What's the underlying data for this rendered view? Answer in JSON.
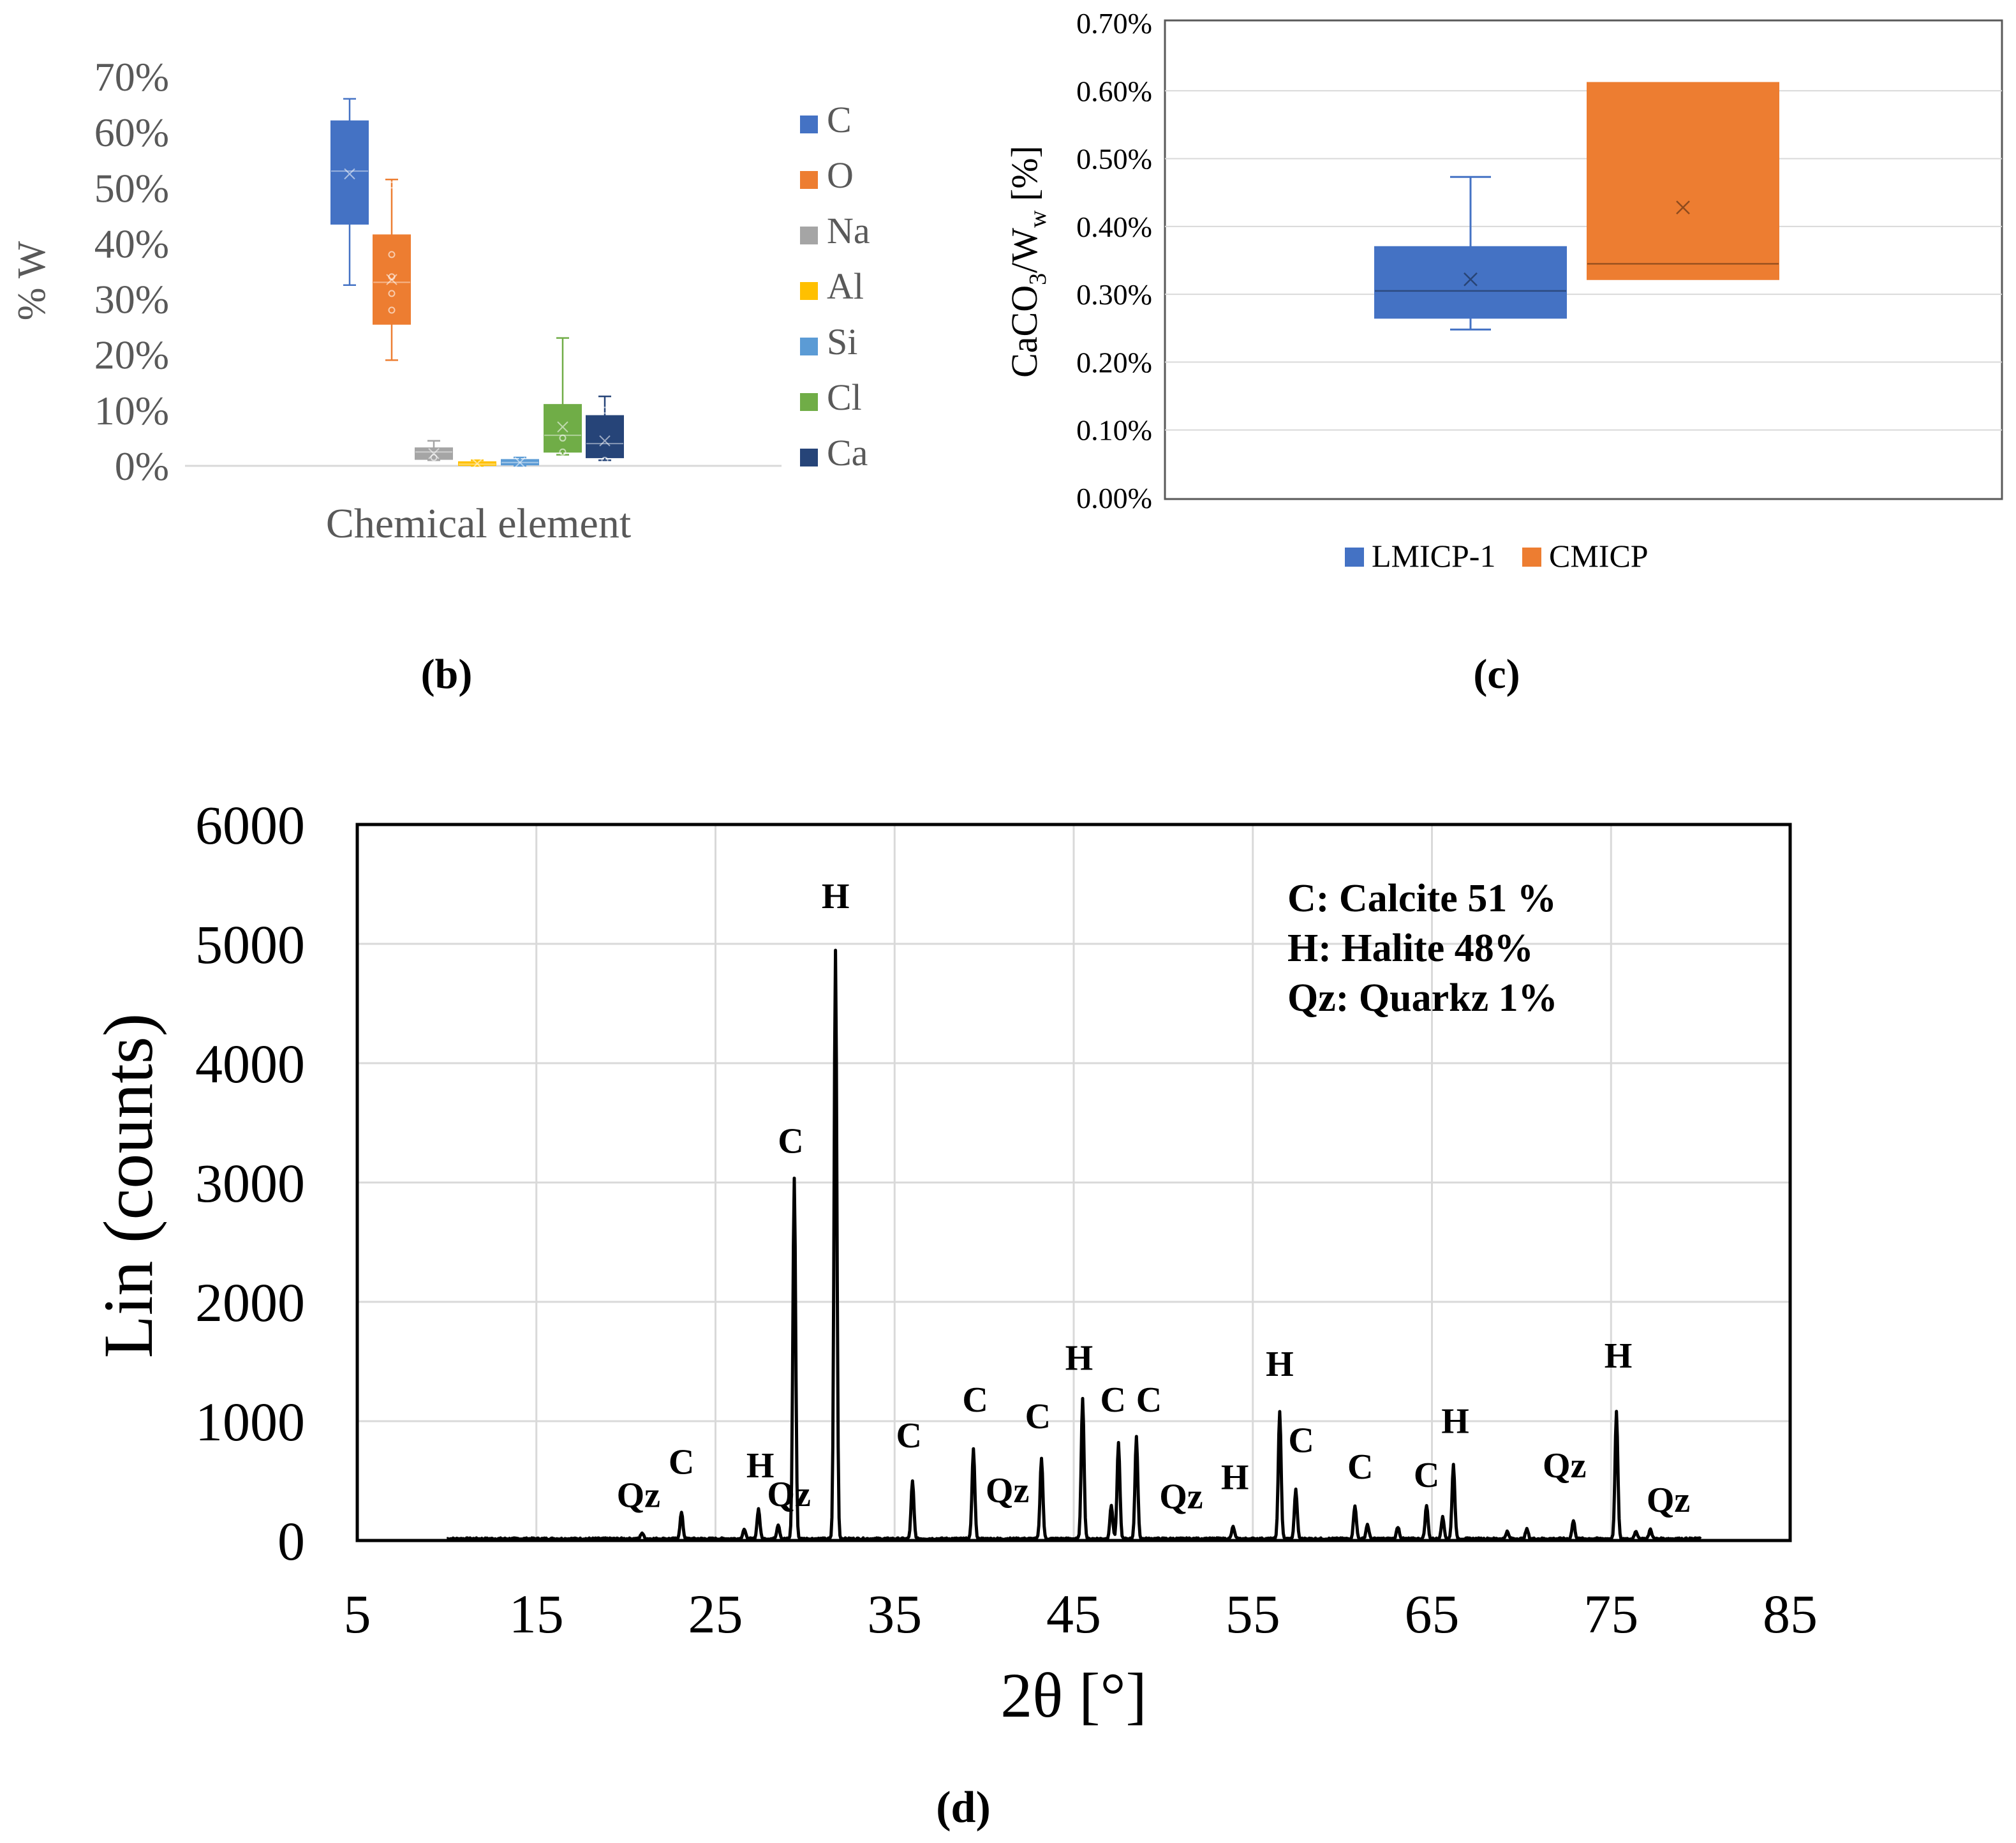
{
  "colors": {
    "C": "#4472C4",
    "O": "#ED7D31",
    "Na": "#A5A5A5",
    "Al": "#FFC000",
    "Si": "#5B9BD5",
    "Cl": "#70AD47",
    "Ca": "#264478",
    "axis_text_b": "#595959",
    "grid": "#D9D9D9",
    "black": "#000000"
  },
  "chart_data": [
    {
      "panel": "(b)",
      "type": "box",
      "ylabel": "% W",
      "xlabel": "Chemical element",
      "yticks": [
        "0%",
        "10%",
        "20%",
        "30%",
        "40%",
        "50%",
        "60%",
        "70%"
      ],
      "ylim": [
        0,
        70
      ],
      "legend": [
        "C",
        "O",
        "Na",
        "Al",
        "Si",
        "Cl",
        "Ca"
      ],
      "series": [
        {
          "name": "C",
          "min": 32.5,
          "q1": 43.5,
          "median": 53.0,
          "q3": 62.0,
          "max": 66.0,
          "mean": 52.5,
          "points": []
        },
        {
          "name": "O",
          "min": 19.0,
          "q1": 25.5,
          "median": 33.0,
          "q3": 41.5,
          "max": 51.5,
          "mean": 33.5,
          "points": [
            28,
            31,
            34,
            38,
            50.5
          ]
        },
        {
          "name": "Na",
          "min": 1.0,
          "q1": 1.2,
          "median": 2.5,
          "q3": 3.2,
          "max": 4.5,
          "mean": 2.2,
          "points": [
            1.5
          ]
        },
        {
          "name": "Al",
          "min": 0.0,
          "q1": 0.1,
          "median": 0.3,
          "q3": 0.7,
          "max": 1.0,
          "mean": 0.4,
          "points": []
        },
        {
          "name": "Si",
          "min": 0.0,
          "q1": 0.2,
          "median": 0.6,
          "q3": 1.1,
          "max": 1.5,
          "mean": 0.6,
          "points": []
        },
        {
          "name": "Cl",
          "min": 2.0,
          "q1": 2.5,
          "median": 5.5,
          "q3": 11.0,
          "max": 23.0,
          "mean": 7.0,
          "points": [
            2.5,
            5.0
          ]
        },
        {
          "name": "Ca",
          "min": 1.0,
          "q1": 1.5,
          "median": 4.0,
          "q3": 9.0,
          "max": 12.5,
          "mean": 4.5,
          "points": [
            1.0,
            10.0
          ]
        }
      ],
      "caption": "(b)"
    },
    {
      "panel": "(c)",
      "type": "box",
      "ylabel_main": "CaCO",
      "ylabel_sub1": "3",
      "ylabel_mid": "/W",
      "ylabel_sub2": "w",
      "ylabel_end": " [%]",
      "yticks": [
        "0.00%",
        "0.10%",
        "0.20%",
        "0.30%",
        "0.40%",
        "0.50%",
        "0.60%",
        "0.70%"
      ],
      "ylim": [
        0,
        0.7
      ],
      "legend": [
        "LMICP-1",
        "CMICP"
      ],
      "series": [
        {
          "name": "LMICP-1",
          "min": 0.248,
          "q1": 0.265,
          "median": 0.305,
          "q3": 0.37,
          "max": 0.473,
          "mean": 0.322
        },
        {
          "name": "CMICP",
          "min": 0.322,
          "q1": 0.322,
          "median": 0.345,
          "q3": 0.612,
          "max": 0.612,
          "mean": 0.428
        }
      ],
      "caption": "(c)"
    },
    {
      "panel": "(d)",
      "type": "line",
      "title": "",
      "xlabel": "2θ [°]",
      "ylabel": "Lin (counts)",
      "xlim": [
        5,
        85
      ],
      "ylim": [
        0,
        6000
      ],
      "xticks": [
        "5",
        "15",
        "25",
        "35",
        "45",
        "55",
        "65",
        "75",
        "85"
      ],
      "yticks": [
        "0",
        "1000",
        "2000",
        "3000",
        "4000",
        "5000",
        "6000"
      ],
      "legend_text": [
        "C: Calcite 51 %",
        "H: Halite 48%",
        "Qz: Quarkz 1%"
      ],
      "peaks": [
        {
          "x": 20.9,
          "y": 50
        },
        {
          "x": 23.1,
          "y": 220
        },
        {
          "x": 26.6,
          "y": 80
        },
        {
          "x": 27.4,
          "y": 250
        },
        {
          "x": 28.5,
          "y": 120
        },
        {
          "x": 29.4,
          "y": 3020
        },
        {
          "x": 31.7,
          "y": 4930
        },
        {
          "x": 36.0,
          "y": 480
        },
        {
          "x": 39.4,
          "y": 750
        },
        {
          "x": 43.2,
          "y": 680
        },
        {
          "x": 45.5,
          "y": 1180
        },
        {
          "x": 47.1,
          "y": 280
        },
        {
          "x": 47.5,
          "y": 800
        },
        {
          "x": 48.5,
          "y": 850
        },
        {
          "x": 53.9,
          "y": 100
        },
        {
          "x": 56.5,
          "y": 1070
        },
        {
          "x": 57.4,
          "y": 410
        },
        {
          "x": 60.7,
          "y": 280
        },
        {
          "x": 61.4,
          "y": 120
        },
        {
          "x": 63.1,
          "y": 100
        },
        {
          "x": 64.7,
          "y": 280
        },
        {
          "x": 65.6,
          "y": 180
        },
        {
          "x": 66.2,
          "y": 620
        },
        {
          "x": 69.2,
          "y": 60
        },
        {
          "x": 70.3,
          "y": 80
        },
        {
          "x": 72.9,
          "y": 150
        },
        {
          "x": 75.3,
          "y": 1060
        },
        {
          "x": 76.4,
          "y": 60
        },
        {
          "x": 77.2,
          "y": 80
        }
      ],
      "annotations": [
        {
          "text": "H",
          "x": 31.7,
          "y": 5300
        },
        {
          "text": "C",
          "x": 29.2,
          "y": 3250
        },
        {
          "text": "C",
          "x": 23.1,
          "y": 560
        },
        {
          "text": "Qz",
          "x": 20.7,
          "y": 280
        },
        {
          "text": "H",
          "x": 27.5,
          "y": 530
        },
        {
          "text": "Qz",
          "x": 29.1,
          "y": 290
        },
        {
          "text": "C",
          "x": 35.8,
          "y": 780
        },
        {
          "text": "C",
          "x": 39.5,
          "y": 1080
        },
        {
          "text": "Qz",
          "x": 41.3,
          "y": 320
        },
        {
          "text": "C",
          "x": 43.0,
          "y": 940
        },
        {
          "text": "H",
          "x": 45.3,
          "y": 1430
        },
        {
          "text": "C",
          "x": 47.2,
          "y": 1080
        },
        {
          "text": "C",
          "x": 49.2,
          "y": 1080
        },
        {
          "text": "Qz",
          "x": 51.0,
          "y": 270
        },
        {
          "text": "H",
          "x": 54.0,
          "y": 430
        },
        {
          "text": "H",
          "x": 56.5,
          "y": 1380
        },
        {
          "text": "C",
          "x": 57.7,
          "y": 740
        },
        {
          "text": "C",
          "x": 61.0,
          "y": 520
        },
        {
          "text": "C",
          "x": 64.7,
          "y": 450
        },
        {
          "text": "H",
          "x": 66.3,
          "y": 900
        },
        {
          "text": "Qz",
          "x": 72.4,
          "y": 530
        },
        {
          "text": "H",
          "x": 75.4,
          "y": 1450
        },
        {
          "text": "Qz",
          "x": 78.2,
          "y": 240
        }
      ],
      "caption": "(d)"
    }
  ]
}
